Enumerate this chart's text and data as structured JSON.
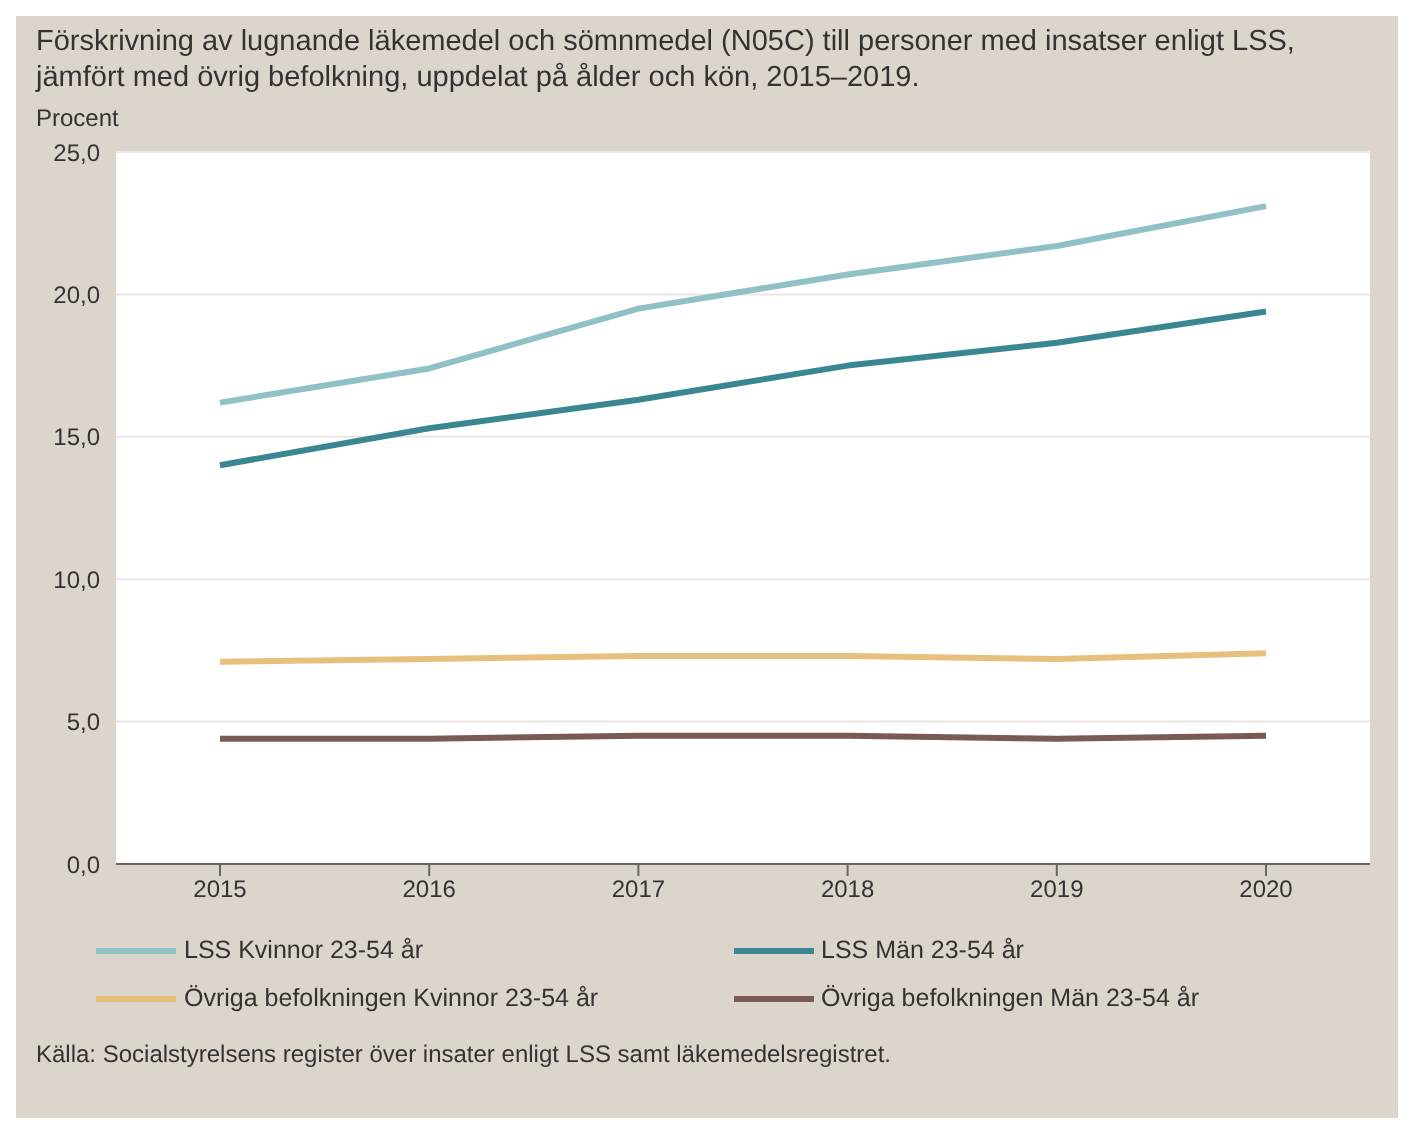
{
  "chart_data": {
    "type": "line",
    "title": "Förskrivning av lugnande läkemedel och sömnmedel (N05C) till personer med insatser enligt LSS, jämfört med övrig befolkning, uppdelat på ålder och kön, 2015–2019.",
    "ylabel": "Procent",
    "categories": [
      "2015",
      "2016",
      "2017",
      "2018",
      "2019",
      "2020"
    ],
    "series": [
      {
        "name": "LSS Kvinnor 23-54 år",
        "color": "#8fc1c6",
        "values": [
          16.2,
          17.4,
          19.5,
          20.7,
          21.7,
          23.1
        ]
      },
      {
        "name": "LSS Män 23-54 år",
        "color": "#3b8791",
        "values": [
          14.0,
          15.3,
          16.3,
          17.5,
          18.3,
          19.4
        ]
      },
      {
        "name": "Övriga befolkningen Kvinnor 23-54 år",
        "color": "#e8c07d",
        "values": [
          7.1,
          7.2,
          7.3,
          7.3,
          7.2,
          7.4
        ]
      },
      {
        "name": "Övriga befolkningen Män 23-54 år",
        "color": "#7a5a55",
        "values": [
          4.4,
          4.4,
          4.5,
          4.5,
          4.4,
          4.5
        ]
      }
    ],
    "ylim": [
      0,
      25
    ],
    "yticks": [
      {
        "value": 0,
        "label": "0,0"
      },
      {
        "value": 5,
        "label": "5,0"
      },
      {
        "value": 10,
        "label": "10,0"
      },
      {
        "value": 15,
        "label": "15,0"
      },
      {
        "value": 20,
        "label": "20,0"
      },
      {
        "value": 25,
        "label": "25,0"
      }
    ],
    "grid": "y",
    "legend": "bottom",
    "marker": "none",
    "line_style": "solid",
    "annotations": [
      "Källa: Socialstyrelsens register över insater enligt LSS samt läkemedelsregistret."
    ]
  }
}
